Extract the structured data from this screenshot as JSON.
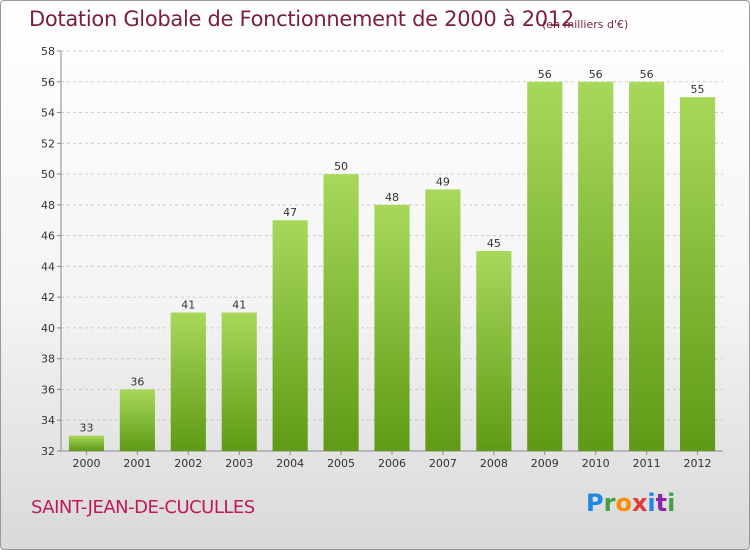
{
  "header": {
    "title": "Dotation Globale de Fonctionnement de 2000 à 2012",
    "subtitle": "(en milliers d'€)"
  },
  "footer": {
    "commune": "SAINT-JEAN-DE-CUCULLES",
    "logo_letters": [
      "P",
      "r",
      "o",
      "x",
      "i",
      "t",
      "i"
    ],
    "logo_colors": [
      "#1e88e5",
      "#43a047",
      "#fb8c00",
      "#e53935",
      "#1e88e5",
      "#8e24aa",
      "#43a047"
    ]
  },
  "colors": {
    "bar_light": "#a8d85a",
    "bar_dark": "#5f9a16",
    "grid": "#cccccc",
    "axis": "#888888"
  },
  "chart_data": {
    "type": "bar",
    "title": "Dotation Globale de Fonctionnement de 2000 à 2012",
    "subtitle": "(en milliers d'€)",
    "categories": [
      "2000",
      "2001",
      "2002",
      "2003",
      "2004",
      "2005",
      "2006",
      "2007",
      "2008",
      "2009",
      "2010",
      "2011",
      "2012"
    ],
    "values": [
      33,
      36,
      41,
      41,
      47,
      50,
      48,
      49,
      45,
      56,
      56,
      56,
      55
    ],
    "value_labels": [
      "33",
      "36",
      "41",
      "41",
      "47",
      "50",
      "48",
      "49",
      "45",
      "56",
      "56",
      "56",
      "55"
    ],
    "ylim": [
      32,
      58
    ],
    "yticks": [
      32,
      34,
      36,
      38,
      40,
      42,
      44,
      46,
      48,
      50,
      52,
      54,
      56,
      58
    ],
    "ytick_labels": [
      "32",
      "34",
      "36",
      "38",
      "40",
      "42",
      "44",
      "46",
      "48",
      "50",
      "52",
      "54",
      "56",
      "58"
    ],
    "grid": true
  }
}
